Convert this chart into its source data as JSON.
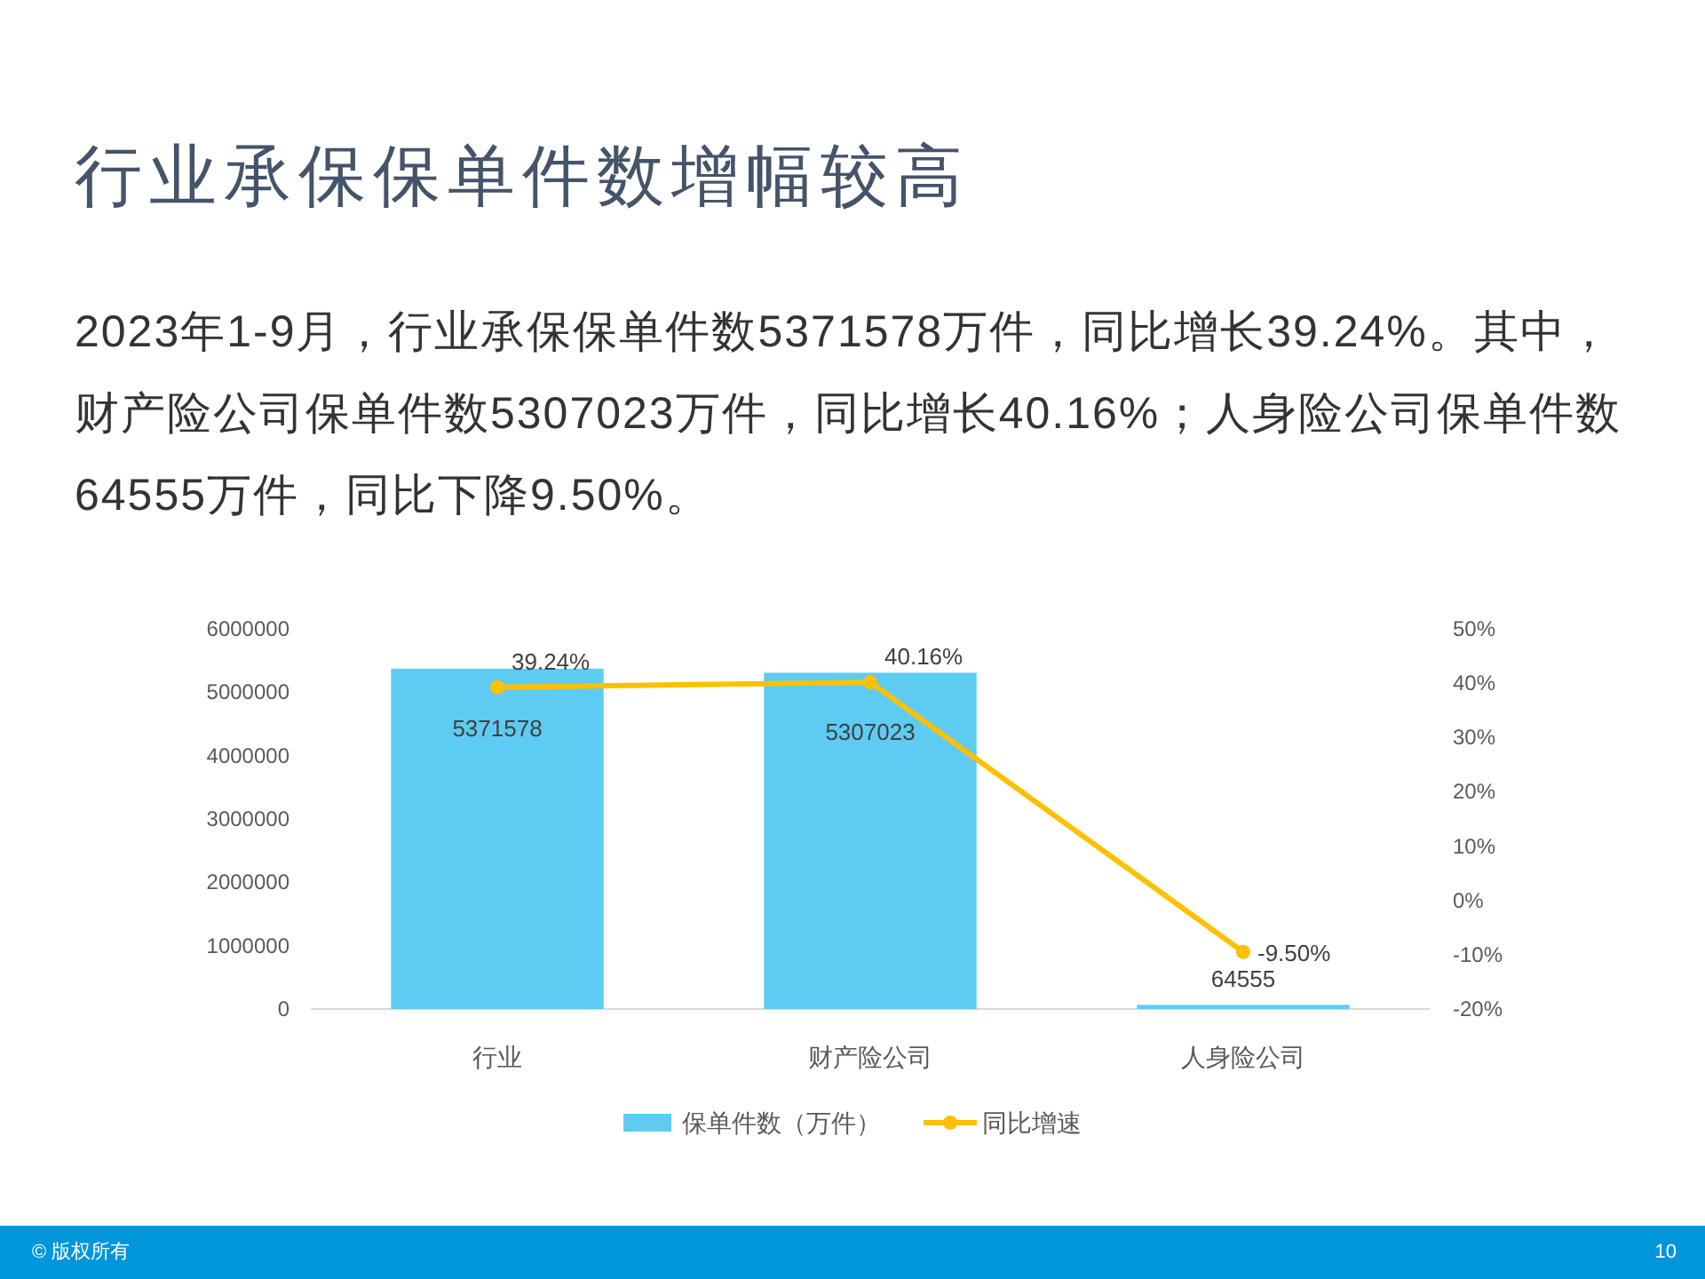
{
  "chart_data": {
    "type": "bar",
    "title": "行业承保保单件数增幅较高",
    "subtitle": "2023年1-9月，行业承保保单件数5371578万件，同比增长39.24%。其中，财产险公司保单件数5307023万件，同比增长40.16%；人身险公司保单件数64555万件，同比下降9.50%。",
    "categories": [
      "行业",
      "财产险公司",
      "人身险公司"
    ],
    "series": [
      {
        "name": "保单件数（万件）",
        "color": "#5ecbf3",
        "values": [
          5371578,
          5307023,
          64555
        ],
        "value_labels": [
          "5371578",
          "5307023",
          "64555"
        ]
      },
      {
        "name": "同比增速",
        "type": "line",
        "axis": "y2",
        "color": "#ffc000",
        "marker": "circle",
        "values": [
          39.24,
          40.16,
          -9.5
        ],
        "value_labels": [
          "39.24%",
          "40.16%",
          "-9.50%"
        ]
      }
    ],
    "ylim": [
      0,
      6000000
    ],
    "yticks": [
      0,
      1000000,
      2000000,
      3000000,
      4000000,
      5000000,
      6000000
    ],
    "y2lim": [
      -20,
      50
    ],
    "y2ticks": [
      {
        "value": -20,
        "label": "-20%"
      },
      {
        "value": -10,
        "label": "-10%"
      },
      {
        "value": 0,
        "label": "0%"
      },
      {
        "value": 10,
        "label": "10%"
      },
      {
        "value": 20,
        "label": "20%"
      },
      {
        "value": 30,
        "label": "30%"
      },
      {
        "value": 40,
        "label": "40%"
      },
      {
        "value": 50,
        "label": "50%"
      }
    ],
    "grid": false,
    "legend": "bottom",
    "annotations": [
      "© 版权所有",
      "10"
    ]
  }
}
